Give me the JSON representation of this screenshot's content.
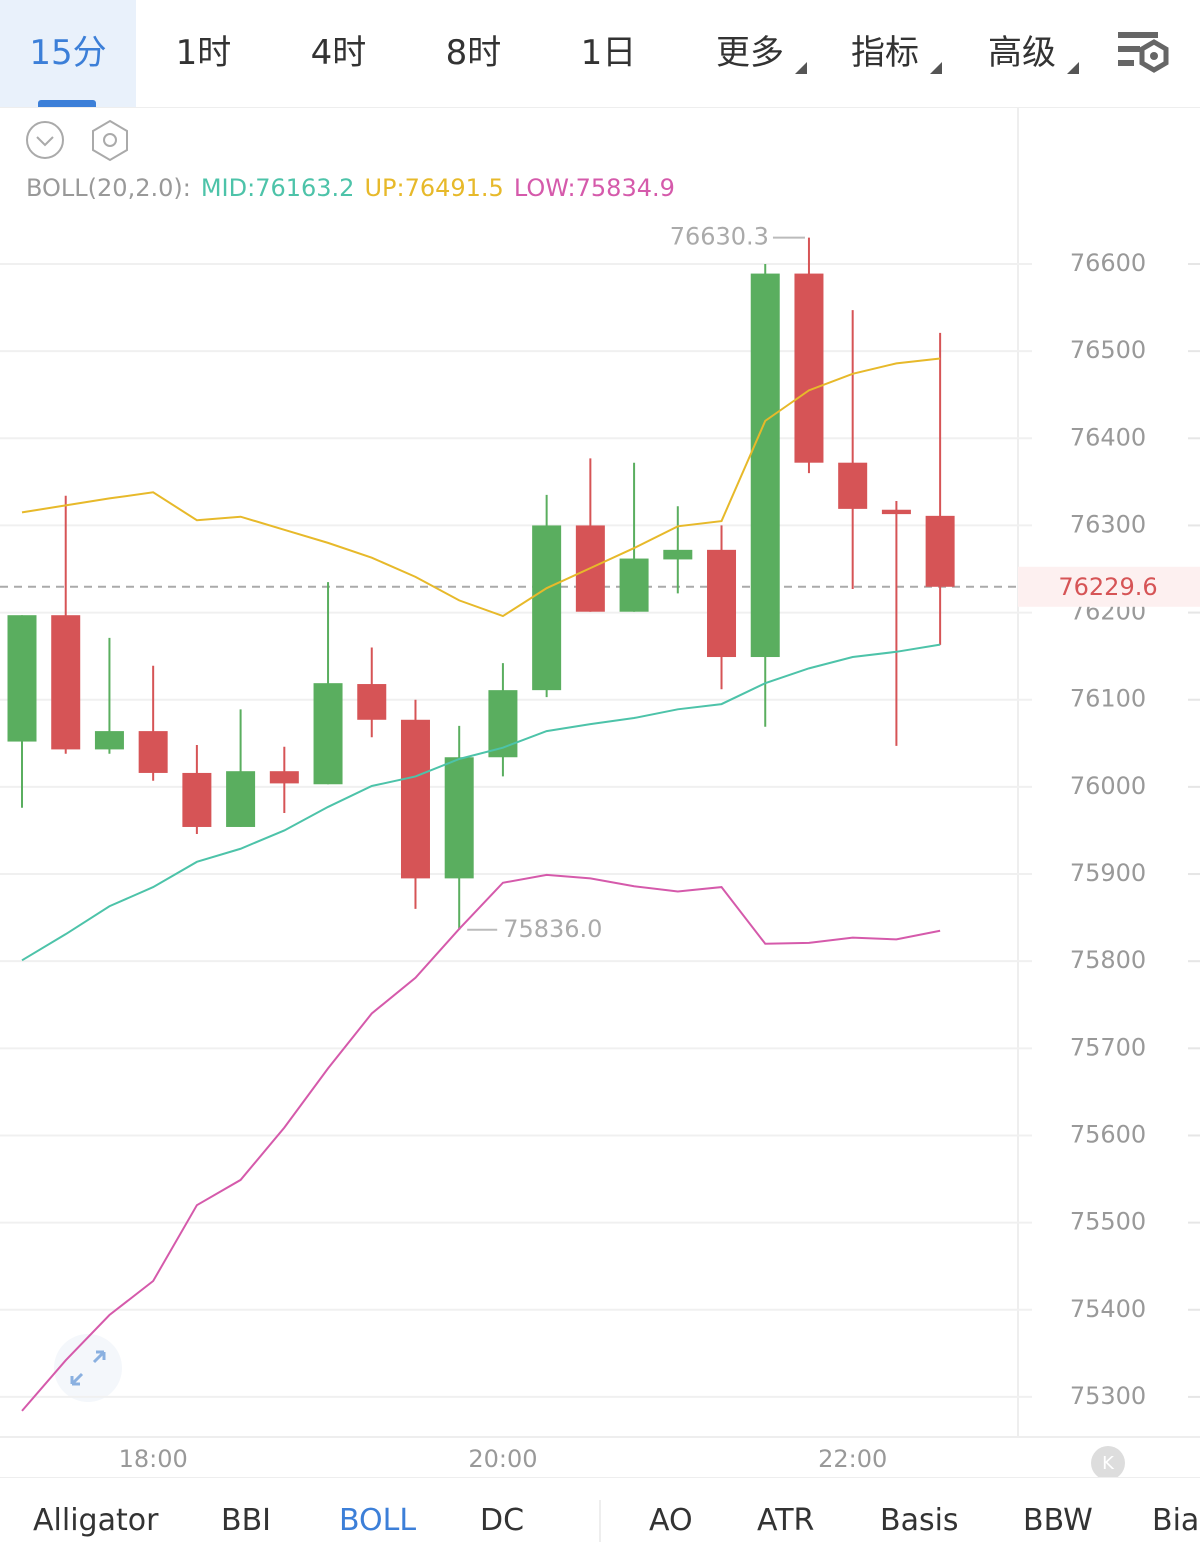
{
  "toolbar": {
    "tabs": [
      "15分",
      "1时",
      "4时",
      "8时",
      "1日"
    ],
    "menus": [
      "更多",
      "指标",
      "高级"
    ]
  },
  "chart_data": {
    "type": "candlestick",
    "indicator": "BOLL(20,2.0):",
    "categories": [
      null,
      null,
      null,
      "18:00",
      null,
      null,
      null,
      null,
      null,
      null,
      null,
      "20:00",
      null,
      null,
      null,
      null,
      null,
      null,
      null,
      "22:00",
      null,
      null
    ],
    "open": [
      76052,
      76197,
      76043,
      76064,
      76016,
      75954,
      76018,
      76003,
      76118,
      76077,
      75895,
      76034,
      76111,
      76300,
      76201,
      76261,
      76272,
      76149,
      76589,
      76372,
      76318,
      76311
    ],
    "high": [
      76197,
      76334,
      76171,
      76139,
      76048,
      76089,
      76046,
      76235,
      76160,
      76100,
      76070,
      76142,
      76335,
      76377,
      76372,
      76322,
      76300,
      76600,
      76630.3,
      76547,
      76328,
      76521
    ],
    "low": [
      75976,
      76038,
      76038,
      76007,
      75946,
      75954,
      75970,
      76003,
      76057,
      75860,
      75836,
      76012,
      76103,
      76201,
      76201,
      76222,
      76112,
      76069,
      76360,
      76227,
      76047,
      76163
    ],
    "close": [
      76197,
      76043,
      76064,
      76016,
      75954,
      76018,
      76004,
      76119,
      76077,
      75895,
      76034,
      76111,
      76300,
      76201,
      76262,
      76272,
      76149,
      76589,
      76372,
      76319,
      76313,
      76229.6
    ],
    "up_color": "#5aae5f",
    "down_color": "#d65456",
    "series": [
      {
        "name": "MID:",
        "color": "#4dc3a9",
        "values": [
          75801,
          75831,
          75863,
          75885,
          75914,
          75929,
          75950,
          75977,
          76001,
          76012,
          76032,
          76045,
          76064,
          76072,
          76079,
          76089,
          76095,
          76119,
          76136,
          76149,
          76155,
          76163.2
        ]
      },
      {
        "name": "UP:",
        "color": "#e7b92a",
        "values": [
          76315,
          76323,
          76331,
          76338,
          76306,
          76310,
          76295,
          76280,
          76263,
          76241,
          76214,
          76196,
          76228,
          76251,
          76274,
          76299,
          76305,
          76420,
          76455,
          76474,
          76486,
          76491.5
        ]
      },
      {
        "name": "LOW:",
        "color": "#d55aab",
        "values": [
          75284,
          75342,
          75394,
          75433,
          75520,
          75549,
          75609,
          75677,
          75740,
          75781,
          75837,
          75890,
          75899,
          75895,
          75886,
          75880,
          75885,
          75820,
          75821,
          75827,
          75825,
          75834.9
        ]
      }
    ],
    "max_label": "76630.3",
    "min_label": "75836.0",
    "ylim": [
      75254,
      76779
    ],
    "yticks": [
      76600,
      76500,
      76400,
      76300,
      76200,
      76100,
      76000,
      75900,
      75800,
      75700,
      75600,
      75500,
      75400,
      75300
    ],
    "grid": true
  },
  "indicator_tabs": [
    "Alligator",
    "BBI",
    "BOLL",
    "DC",
    "AO",
    "ATR",
    "Basis",
    "BBW",
    "Bias"
  ]
}
